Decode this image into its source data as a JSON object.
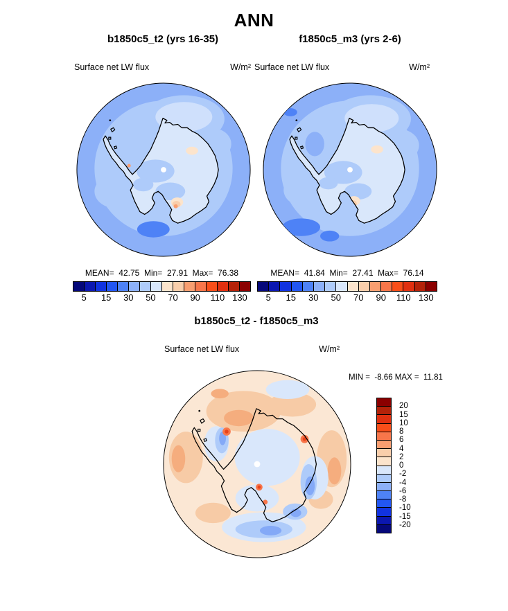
{
  "title": "ANN",
  "panels": {
    "case": {
      "title": "b1850c5_t2 (yrs 16-35)",
      "field": "Surface net LW flux",
      "units": "W/m²",
      "stats_line": "MEAN=  42.75  Min=  27.91  Max=  76.38"
    },
    "control": {
      "title": "f1850c5_m3 (yrs 2-6)",
      "field": "Surface net LW flux",
      "units": "W/m²",
      "stats_line": "MEAN=  41.84  Min=  27.41  Max=  76.14"
    },
    "diff": {
      "title": "b1850c5_t2 - f1850c5_m3",
      "field": "Surface net LW flux",
      "units": "W/m²",
      "minmax_line": "MIN =  -8.66 MAX =  11.81"
    }
  },
  "colorbar": {
    "orientation": "horizontal",
    "n_segments": 16,
    "tick_labels": [
      "5",
      "15",
      "30",
      "50",
      "70",
      "90",
      "110",
      "130"
    ]
  },
  "diff_colorbar": {
    "orientation": "vertical",
    "n_segments": 16,
    "tick_labels": [
      "20",
      "15",
      "10",
      "8",
      "6",
      "4",
      "2",
      "0",
      "-2",
      "-4",
      "-6",
      "-8",
      "-10",
      "-15",
      "-20"
    ]
  },
  "palette_low_to_high": [
    "#05087a",
    "#0b17b0",
    "#1133e0",
    "#2256f2",
    "#4e82f6",
    "#8cb0f8",
    "#aecbfa",
    "#d9e7fb",
    "#fce4cc",
    "#f9ceab",
    "#f99e70",
    "#f8764a",
    "#f94e19",
    "#e03010",
    "#b42209",
    "#8b0000"
  ],
  "map_colors": {
    "ocean": "#8cb0f8",
    "inner_band": "#aecbfa",
    "inner_band_light": "#cfe0fc",
    "continent": "#d9e7fb",
    "warm_spot": "#fce4cc",
    "warm_spot2": "#f9ceab",
    "warm_dot": "#f99e70",
    "cold_patch": "#4e82f6",
    "coastline": "#000000",
    "diff_base": "#fbe7d4",
    "diff_peach": "#f7cba6",
    "diff_salmon": "#f5ad7e",
    "diff_red": "#f8764a",
    "diff_red_dark": "#e8431c",
    "diff_blue_pale": "#d9e7fb",
    "diff_blue_light": "#aecbfa",
    "diff_blue_med": "#84a9f7"
  },
  "chart_data": [
    {
      "type": "heatmap",
      "subtype": "south-polar-stereographic-contour-map",
      "region": "Antarctica / southern polar cap",
      "title": "b1850c5_t2 (yrs 16-35)",
      "variable": "Surface net LW flux",
      "units": "W/m2",
      "stats": {
        "mean": 42.75,
        "min": 27.91,
        "max": 76.38
      },
      "contour_levels": [
        5,
        10,
        15,
        20,
        30,
        40,
        50,
        60,
        70,
        80,
        90,
        100,
        110,
        120,
        130
      ],
      "colorbar_tick_labels": [
        5,
        15,
        30,
        50,
        70,
        90,
        110,
        130
      ],
      "legend_position": "bottom",
      "notes": "ocean mostly 30-40 band, coastal band 40-50, continental interior 50-60 with small 60-80 spots, isolated 20-30 patch in ocean at bottom"
    },
    {
      "type": "heatmap",
      "subtype": "south-polar-stereographic-contour-map",
      "region": "Antarctica / southern polar cap",
      "title": "f1850c5_m3 (yrs 2-6)",
      "variable": "Surface net LW flux",
      "units": "W/m2",
      "stats": {
        "mean": 41.84,
        "min": 27.41,
        "max": 76.14
      },
      "contour_levels": [
        5,
        10,
        15,
        20,
        30,
        40,
        50,
        60,
        70,
        80,
        90,
        100,
        110,
        120,
        130
      ],
      "colorbar_tick_labels": [
        5,
        15,
        30,
        50,
        70,
        90,
        110,
        130
      ],
      "legend_position": "bottom",
      "notes": "pattern nearly identical to case panel; extra 20-30 patches in ocean bottom-left and near peninsula"
    },
    {
      "type": "heatmap",
      "subtype": "south-polar-stereographic-contour-map",
      "region": "Antarctica / southern polar cap",
      "title": "b1850c5_t2 - f1850c5_m3",
      "variable": "Surface net LW flux",
      "units": "W/m2",
      "stats": {
        "min": -8.66,
        "max": 11.81
      },
      "contour_levels": [
        -20,
        -15,
        -10,
        -8,
        -6,
        -4,
        -2,
        0,
        2,
        4,
        6,
        8,
        10,
        15,
        20
      ],
      "colorbar_tick_labels": [
        20,
        15,
        10,
        8,
        6,
        4,
        2,
        0,
        -2,
        -4,
        -6,
        -8,
        -10,
        -15,
        -20
      ],
      "legend_position": "right",
      "notes": "difference map: mostly 0-2 background, +2-6 patches over ocean, small +6-10 spots near coast, -2 to -8 band along coast/continent interior and bottom ocean"
    }
  ]
}
